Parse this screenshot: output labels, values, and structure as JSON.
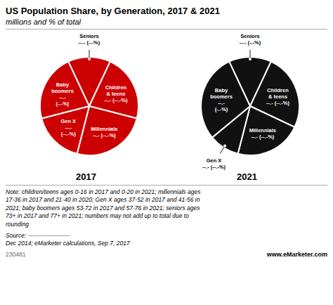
{
  "title": "US Population Share, by Generation, 2017 & 2021",
  "subtitle": "millions and % of total",
  "annotations": [
    "Note: children/teens ages 0-16 in 2017 and 0-20 in 2021; millennials ages\n17-36 in 2017 and 21-40 in 2020; Gen X ages 37-52 in 2017 and 41-56 in\n2021; baby boomers ages 53-72 in 2017 and 57-76 in 2021; seniors ages\n73+ in 2017 and 77+ in 2021; numbers may not add up to total due to\nrounding",
    "Source: ---------------------",
    "Dec 2014; eMarketer calculations, Sep 7, 2017",
    "230481",
    "www.eMarketer.com"
  ],
  "chart_data": [
    {
      "type": "pie",
      "title": "2017",
      "categories": [
        "Seniors",
        "Children\n& teens",
        "Millennials",
        "Gen X",
        "Baby\nboomers"
      ],
      "values": [
        14,
        22,
        25,
        17,
        22
      ],
      "value_labels": [
        "--.- (-.-%)",
        "--.- (--.-%)",
        "--.- (--.-%)",
        "--.-\n(--.-%)",
        "--.-\n(-.-%)"
      ],
      "color": "#cc0000",
      "data_labels": true
    },
    {
      "type": "pie",
      "title": "2021",
      "categories": [
        "Seniors",
        "Children\n& teens",
        "Millennials",
        "Gen X",
        "Baby\nboomers"
      ],
      "values": [
        14,
        25,
        22,
        10,
        29
      ],
      "value_labels": [
        "--.- (-.-%)",
        "--.- (--.-%)",
        "--.- (--.-%)",
        "--.- (--.-%)",
        "--.-\n(-.-%)"
      ],
      "color": "#111111",
      "data_labels": true
    }
  ]
}
